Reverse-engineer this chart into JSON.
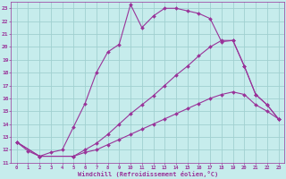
{
  "xlabel": "Windchill (Refroidissement éolien,°C)",
  "bg_color": "#c6ecec",
  "grid_color": "#a0d0d0",
  "line_color": "#993399",
  "xlim": [
    -0.5,
    23.5
  ],
  "ylim": [
    11,
    23.5
  ],
  "xticks": [
    0,
    1,
    2,
    3,
    4,
    5,
    6,
    7,
    8,
    9,
    10,
    11,
    12,
    13,
    14,
    15,
    16,
    17,
    18,
    19,
    20,
    21,
    22,
    23
  ],
  "yticks": [
    11,
    12,
    13,
    14,
    15,
    16,
    17,
    18,
    19,
    20,
    21,
    22,
    23
  ],
  "curve1_x": [
    0,
    1,
    2,
    3,
    4,
    5,
    6,
    7,
    8,
    9,
    10,
    11,
    12,
    13,
    14,
    15,
    16,
    17,
    18,
    19,
    20,
    21,
    22,
    23
  ],
  "curve1_y": [
    12.6,
    11.9,
    11.5,
    11.8,
    12.0,
    13.8,
    15.6,
    18.0,
    19.6,
    20.2,
    23.3,
    21.5,
    22.4,
    23.0,
    23.0,
    22.8,
    22.6,
    22.2,
    20.4,
    20.5,
    18.5,
    16.3,
    15.5,
    14.4
  ],
  "curve2_x": [
    0,
    2,
    5,
    6,
    7,
    8,
    9,
    10,
    11,
    12,
    13,
    14,
    15,
    16,
    17,
    18,
    19,
    20,
    21,
    22,
    23
  ],
  "curve2_y": [
    12.6,
    11.5,
    11.5,
    12.0,
    12.5,
    13.2,
    14.0,
    14.8,
    15.5,
    16.2,
    17.0,
    17.8,
    18.5,
    19.3,
    20.0,
    20.5,
    20.5,
    18.5,
    16.3,
    15.5,
    14.4
  ],
  "curve3_x": [
    0,
    2,
    5,
    6,
    7,
    8,
    9,
    10,
    11,
    12,
    13,
    14,
    15,
    16,
    17,
    18,
    19,
    20,
    21,
    22,
    23
  ],
  "curve3_y": [
    12.6,
    11.5,
    11.5,
    11.8,
    12.0,
    12.4,
    12.8,
    13.2,
    13.6,
    14.0,
    14.4,
    14.8,
    15.2,
    15.6,
    16.0,
    16.3,
    16.5,
    16.3,
    15.5,
    15.0,
    14.4
  ],
  "marker": "D",
  "markersize": 2.0,
  "linewidth": 0.8
}
